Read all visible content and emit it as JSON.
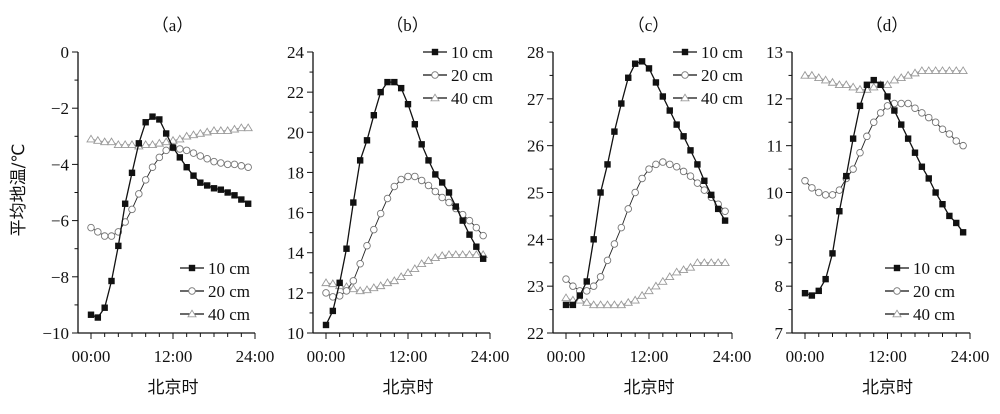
{
  "ylabel": "平均地温/℃",
  "chart_data": [
    {
      "type": "line",
      "title": "（a）",
      "xlabel": "北京时",
      "ylabel": "平均地温/℃",
      "x": [
        0,
        1,
        2,
        3,
        4,
        5,
        6,
        7,
        8,
        9,
        10,
        11,
        12,
        13,
        14,
        15,
        16,
        17,
        18,
        19,
        20,
        21,
        22,
        23
      ],
      "xticks": [
        "00:00",
        "12:00",
        "24:00"
      ],
      "xlim": [
        0,
        24
      ],
      "ylim": [
        -10,
        0
      ],
      "yticks": [
        -10,
        -8,
        -6,
        -4,
        -2,
        0
      ],
      "legend_position": "bottom-right",
      "series": [
        {
          "name": "10 cm",
          "marker": "filled-square",
          "values": [
            -9.35,
            -9.45,
            -9.1,
            -8.15,
            -6.9,
            -5.4,
            -4.3,
            -3.25,
            -2.5,
            -2.3,
            -2.4,
            -2.9,
            -3.4,
            -3.75,
            -4.1,
            -4.4,
            -4.65,
            -4.75,
            -4.85,
            -4.9,
            -5.0,
            -5.1,
            -5.25,
            -5.4
          ]
        },
        {
          "name": "20 cm",
          "marker": "open-circle",
          "values": [
            -6.25,
            -6.4,
            -6.55,
            -6.55,
            -6.4,
            -6.05,
            -5.6,
            -5.05,
            -4.55,
            -4.1,
            -3.75,
            -3.5,
            -3.4,
            -3.45,
            -3.5,
            -3.6,
            -3.7,
            -3.8,
            -3.9,
            -3.95,
            -4.0,
            -4.0,
            -4.05,
            -4.1
          ]
        },
        {
          "name": "40 cm",
          "marker": "open-triangle",
          "values": [
            -3.1,
            -3.15,
            -3.2,
            -3.2,
            -3.3,
            -3.3,
            -3.3,
            -3.35,
            -3.3,
            -3.3,
            -3.25,
            -3.2,
            -3.15,
            -3.1,
            -3.0,
            -2.95,
            -2.9,
            -2.85,
            -2.8,
            -2.8,
            -2.8,
            -2.75,
            -2.7,
            -2.7
          ]
        }
      ]
    },
    {
      "type": "line",
      "title": "（b）",
      "xlabel": "北京时",
      "ylabel": "",
      "x": [
        0,
        1,
        2,
        3,
        4,
        5,
        6,
        7,
        8,
        9,
        10,
        11,
        12,
        13,
        14,
        15,
        16,
        17,
        18,
        19,
        20,
        21,
        22,
        23
      ],
      "xticks": [
        "00:00",
        "12:00",
        "24:00"
      ],
      "xlim": [
        0,
        24
      ],
      "ylim": [
        10,
        24
      ],
      "yticks": [
        10,
        12,
        14,
        16,
        18,
        20,
        22,
        24
      ],
      "legend_position": "top-right",
      "series": [
        {
          "name": "10 cm",
          "marker": "filled-square",
          "values": [
            10.4,
            11.1,
            12.5,
            14.2,
            16.5,
            18.6,
            19.6,
            20.85,
            22.0,
            22.5,
            22.5,
            22.2,
            21.4,
            20.4,
            19.4,
            18.6,
            17.9,
            17.5,
            17.0,
            16.3,
            15.6,
            14.9,
            14.3,
            13.7
          ]
        },
        {
          "name": "20 cm",
          "marker": "open-circle",
          "values": [
            12.0,
            11.8,
            11.85,
            12.1,
            12.6,
            13.45,
            14.35,
            15.15,
            15.95,
            16.7,
            17.3,
            17.65,
            17.8,
            17.8,
            17.6,
            17.35,
            17.05,
            16.75,
            16.5,
            16.2,
            15.9,
            15.6,
            15.25,
            14.85
          ]
        },
        {
          "name": "40 cm",
          "marker": "open-triangle",
          "values": [
            12.5,
            12.45,
            12.35,
            12.3,
            12.2,
            12.1,
            12.15,
            12.25,
            12.35,
            12.5,
            12.6,
            12.8,
            13.0,
            13.2,
            13.45,
            13.6,
            13.75,
            13.85,
            13.9,
            13.9,
            13.9,
            13.9,
            13.9,
            13.9
          ]
        }
      ]
    },
    {
      "type": "line",
      "title": "（c）",
      "xlabel": "北京时",
      "ylabel": "",
      "x": [
        0,
        1,
        2,
        3,
        4,
        5,
        6,
        7,
        8,
        9,
        10,
        11,
        12,
        13,
        14,
        15,
        16,
        17,
        18,
        19,
        20,
        21,
        22,
        23
      ],
      "xticks": [
        "00:00",
        "12:00",
        "24:00"
      ],
      "xlim": [
        0,
        24
      ],
      "ylim": [
        22,
        28
      ],
      "yticks": [
        22,
        23,
        24,
        25,
        26,
        27,
        28
      ],
      "legend_position": "top-right",
      "series": [
        {
          "name": "10 cm",
          "marker": "filled-square",
          "values": [
            22.6,
            22.6,
            22.8,
            23.1,
            24.0,
            25.0,
            25.6,
            26.3,
            26.9,
            27.45,
            27.75,
            27.8,
            27.65,
            27.35,
            27.05,
            26.75,
            26.45,
            26.2,
            25.9,
            25.6,
            25.25,
            24.95,
            24.65,
            24.4
          ]
        },
        {
          "name": "20 cm",
          "marker": "open-circle",
          "values": [
            23.15,
            23.0,
            22.9,
            22.9,
            23.0,
            23.2,
            23.55,
            23.9,
            24.25,
            24.65,
            25.0,
            25.3,
            25.5,
            25.6,
            25.65,
            25.6,
            25.55,
            25.45,
            25.35,
            25.2,
            25.05,
            24.9,
            24.75,
            24.6
          ]
        },
        {
          "name": "40 cm",
          "marker": "open-triangle",
          "values": [
            22.75,
            22.7,
            22.7,
            22.65,
            22.6,
            22.6,
            22.6,
            22.6,
            22.6,
            22.65,
            22.7,
            22.8,
            22.9,
            23.0,
            23.1,
            23.2,
            23.3,
            23.35,
            23.4,
            23.5,
            23.5,
            23.5,
            23.5,
            23.5
          ]
        }
      ]
    },
    {
      "type": "line",
      "title": "（d）",
      "xlabel": "北京时",
      "ylabel": "",
      "x": [
        0,
        1,
        2,
        3,
        4,
        5,
        6,
        7,
        8,
        9,
        10,
        11,
        12,
        13,
        14,
        15,
        16,
        17,
        18,
        19,
        20,
        21,
        22,
        23
      ],
      "xticks": [
        "00:00",
        "12:00",
        "24:00"
      ],
      "xlim": [
        0,
        24
      ],
      "ylim": [
        7,
        13
      ],
      "yticks": [
        7,
        8,
        9,
        10,
        11,
        12,
        13
      ],
      "legend_position": "bottom-right",
      "series": [
        {
          "name": "10 cm",
          "marker": "filled-square",
          "values": [
            7.85,
            7.8,
            7.9,
            8.15,
            8.7,
            9.6,
            10.35,
            11.15,
            11.85,
            12.3,
            12.4,
            12.3,
            12.05,
            11.75,
            11.45,
            11.15,
            10.85,
            10.55,
            10.3,
            10.0,
            9.75,
            9.5,
            9.35,
            9.15
          ]
        },
        {
          "name": "20 cm",
          "marker": "open-circle",
          "values": [
            10.25,
            10.1,
            10.0,
            9.95,
            9.95,
            10.05,
            10.3,
            10.5,
            10.85,
            11.2,
            11.5,
            11.7,
            11.85,
            11.9,
            11.9,
            11.9,
            11.8,
            11.7,
            11.6,
            11.5,
            11.35,
            11.25,
            11.1,
            11.0
          ]
        },
        {
          "name": "40 cm",
          "marker": "open-triangle",
          "values": [
            12.5,
            12.5,
            12.45,
            12.4,
            12.35,
            12.3,
            12.3,
            12.25,
            12.2,
            12.2,
            12.25,
            12.3,
            12.3,
            12.4,
            12.45,
            12.5,
            12.55,
            12.6,
            12.6,
            12.6,
            12.6,
            12.6,
            12.6,
            12.6
          ]
        }
      ]
    }
  ]
}
